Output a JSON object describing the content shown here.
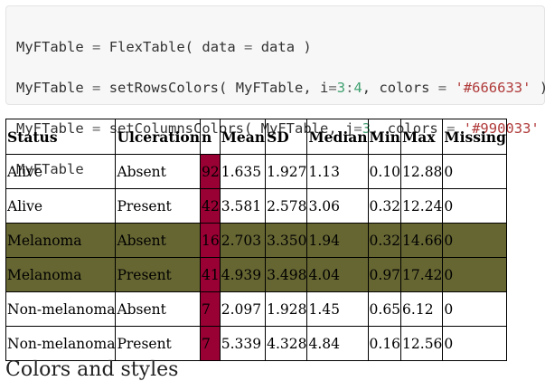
{
  "code": {
    "line1": {
      "var": "MyFTable",
      "op": "=",
      "fn": "FlexTable(",
      "arg": "data",
      "argop": "=",
      "argval": "data",
      "close": ")"
    },
    "line2": {
      "var": "MyFTable",
      "op": "=",
      "fn": "setRowsColors(",
      "arg1": "MyFTable,",
      "param": "i",
      "paramop": "=",
      "num_start": "3",
      "colon": ":",
      "num_end": "4",
      "comma": ",",
      "param2": "colors",
      "param2op": "=",
      "str": "'#666633'",
      "close": ")"
    },
    "line3": {
      "var": "MyFTable",
      "op": "=",
      "fn": "setColumnsColors(",
      "arg1": "MyFTable,",
      "param": "j",
      "paramop": "=",
      "num": "3",
      "comma": ",",
      "param2": "colors",
      "param2op": "=",
      "str": "'#990033'",
      "close": ")"
    },
    "line4": {
      "var": "MyFTable"
    }
  },
  "table": {
    "headers": [
      "Status",
      "Ulceration",
      "n",
      "Mean",
      "SD",
      "Median",
      "Min",
      "Max",
      "Missing"
    ],
    "rows": [
      [
        "Alive",
        "Absent",
        "92",
        "1.635",
        "1.927",
        "1.13",
        "0.10",
        "12.88",
        "0"
      ],
      [
        "Alive",
        "Present",
        "42",
        "3.581",
        "2.578",
        "3.06",
        "0.32",
        "12.24",
        "0"
      ],
      [
        "Melanoma",
        "Absent",
        "16",
        "2.703",
        "3.350",
        "1.94",
        "0.32",
        "14.66",
        "0"
      ],
      [
        "Melanoma",
        "Present",
        "41",
        "4.939",
        "3.498",
        "4.04",
        "0.97",
        "17.42",
        "0"
      ],
      [
        "Non-melanoma",
        "Absent",
        "7",
        "2.097",
        "1.928",
        "1.45",
        "0.65",
        "6.12",
        "0"
      ],
      [
        "Non-melanoma",
        "Present",
        "7",
        "5.339",
        "4.328",
        "4.84",
        "0.16",
        "12.56",
        "0"
      ]
    ],
    "row_highlight_color": "#666633",
    "column_highlight_color": "#990033"
  },
  "caption": "Colors and styles"
}
